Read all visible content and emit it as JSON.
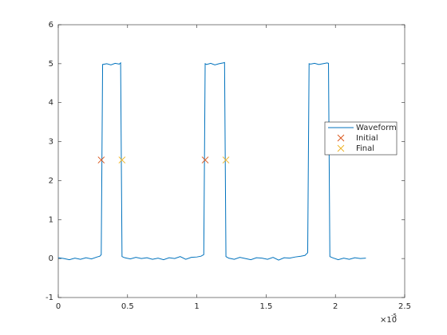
{
  "chart_data": {
    "type": "line",
    "xlim": [
      0,
      2.5e-05
    ],
    "xticks": [
      {
        "value": 0,
        "label": "0"
      },
      {
        "value": 5e-06,
        "label": "0.5"
      },
      {
        "value": 1e-05,
        "label": "1"
      },
      {
        "value": 1.5e-05,
        "label": "1.5"
      },
      {
        "value": 2e-05,
        "label": "2"
      },
      {
        "value": 2.5e-05,
        "label": "2.5"
      }
    ],
    "x_multiplier": {
      "base": "×10",
      "exponent": "-5"
    },
    "ylim": [
      -1,
      6
    ],
    "yticks": [
      -1,
      0,
      1,
      2,
      3,
      4,
      5,
      6
    ],
    "grid": false,
    "legend": "right",
    "series": [
      {
        "name": "Waveform",
        "color": "#0072bd",
        "marker": "none",
        "x": [
          0,
          4e-07,
          8e-07,
          1.2e-06,
          1.6e-06,
          2e-06,
          2.4e-06,
          2.8e-06,
          3e-06,
          3.1e-06,
          3.2e-06,
          3.5e-06,
          3.8e-06,
          4.1e-06,
          4.4e-06,
          4.5e-06,
          4.6e-06,
          4.8e-06,
          5.2e-06,
          5.6e-06,
          6e-06,
          6.4e-06,
          6.8e-06,
          7.2e-06,
          7.6e-06,
          8e-06,
          8.4e-06,
          8.8e-06,
          9.2e-06,
          9.6e-06,
          1e-05,
          1.03e-05,
          1.05e-05,
          1.06e-05,
          1.07e-05,
          1.1e-05,
          1.13e-05,
          1.16e-05,
          1.19e-05,
          1.2e-05,
          1.21e-05,
          1.23e-05,
          1.27e-05,
          1.31e-05,
          1.35e-05,
          1.39e-05,
          1.43e-05,
          1.47e-05,
          1.51e-05,
          1.55e-05,
          1.59e-05,
          1.63e-05,
          1.67e-05,
          1.71e-05,
          1.75e-05,
          1.78e-05,
          1.8e-05,
          1.81e-05,
          1.82e-05,
          1.85e-05,
          1.88e-05,
          1.91e-05,
          1.94e-05,
          1.95e-05,
          1.96e-05,
          1.98e-05,
          2.02e-05,
          2.06e-05,
          2.1e-05,
          2.14e-05,
          2.18e-05,
          2.22e-05
        ],
        "values": [
          0.02,
          0.0,
          -0.03,
          0.01,
          -0.02,
          0.02,
          -0.01,
          0.04,
          0.06,
          0.1,
          4.98,
          5.0,
          4.97,
          5.01,
          4.99,
          5.02,
          0.05,
          0.02,
          -0.01,
          0.03,
          0.0,
          0.02,
          -0.02,
          0.01,
          -0.03,
          0.02,
          0.0,
          0.05,
          -0.02,
          0.03,
          0.04,
          0.06,
          0.1,
          5.0,
          4.98,
          5.01,
          4.97,
          5.0,
          5.02,
          5.03,
          0.05,
          0.01,
          -0.02,
          0.03,
          0.0,
          -0.03,
          0.02,
          0.01,
          -0.02,
          0.03,
          -0.04,
          0.02,
          0.01,
          0.04,
          0.06,
          0.08,
          0.15,
          5.0,
          4.99,
          5.01,
          4.98,
          5.0,
          5.02,
          5.01,
          0.05,
          0.02,
          -0.03,
          0.01,
          -0.02,
          0.02,
          0.0,
          0.01
        ]
      },
      {
        "name": "Initial",
        "color": "#d95319",
        "marker": "x",
        "x": [
          3.1e-06,
          1.06e-05
        ],
        "values": [
          2.53,
          2.53
        ]
      },
      {
        "name": "Final",
        "color": "#edb120",
        "marker": "x",
        "x": [
          4.6e-06,
          1.21e-05
        ],
        "values": [
          2.53,
          2.53
        ]
      }
    ]
  }
}
